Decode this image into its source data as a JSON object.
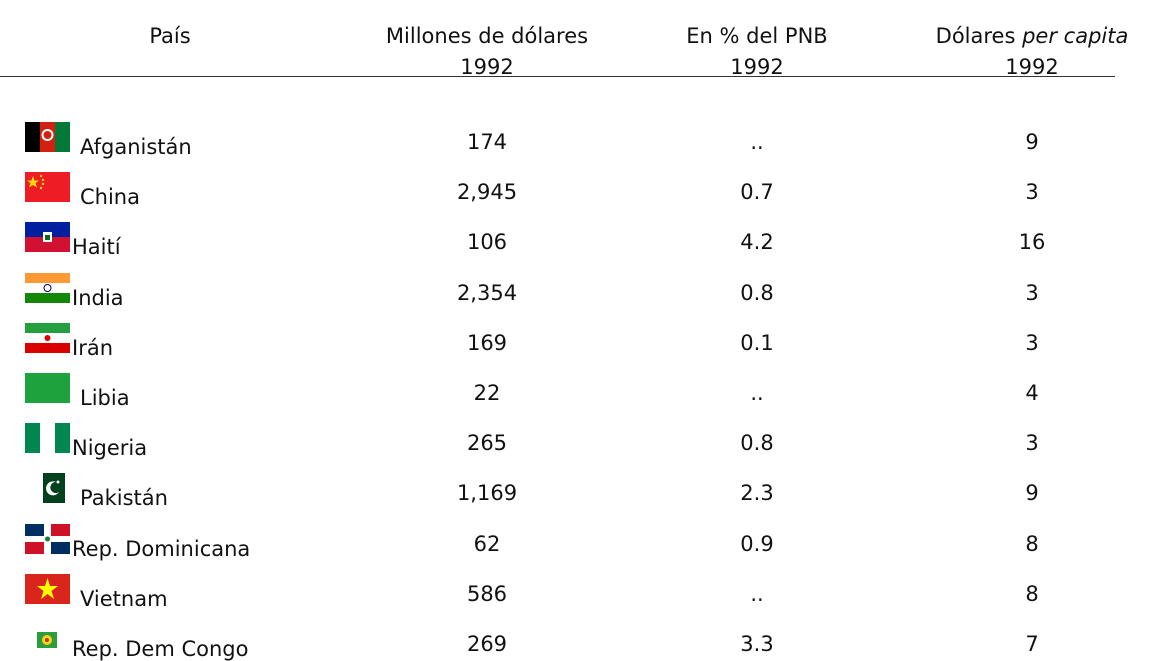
{
  "table": {
    "columns": [
      {
        "title": "País"
      },
      {
        "title": "Millones de dólares",
        "year": "1992"
      },
      {
        "title": "En % del PNB",
        "year": "1992"
      },
      {
        "title": "Dólares",
        "title_italic": "per capita",
        "year": "1992"
      }
    ],
    "rows": [
      [
        "Afganistán",
        "174",
        "..",
        "9"
      ],
      [
        "China",
        "2,945",
        "0.7",
        "3"
      ],
      [
        "Haití",
        "106",
        "4.2",
        "16"
      ],
      [
        "India",
        "2,354",
        "0.8",
        "3"
      ],
      [
        "Irán",
        "169",
        "0.1",
        "3"
      ],
      [
        "Libia",
        "22",
        "..",
        "4"
      ],
      [
        "Nigeria",
        "265",
        "0.8",
        "3"
      ],
      [
        "Pakistán",
        "1,169",
        "2.3",
        "9"
      ],
      [
        "Rep. Dominicana",
        "62",
        "0.9",
        "8"
      ],
      [
        "Vietnam",
        "586",
        "..",
        "8"
      ],
      [
        "Rep. Dem Congo",
        "269",
        "3.3",
        "7"
      ]
    ]
  }
}
